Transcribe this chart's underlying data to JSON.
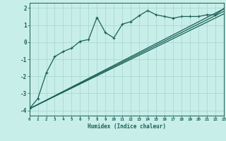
{
  "xlabel": "Humidex (Indice chaleur)",
  "background_color": "#c8eeea",
  "grid_color": "#aad8d3",
  "line_color": "#1a5f57",
  "xlim": [
    0,
    23
  ],
  "ylim": [
    -4.3,
    2.3
  ],
  "xticks": [
    0,
    1,
    2,
    3,
    4,
    5,
    6,
    7,
    8,
    9,
    10,
    11,
    12,
    13,
    14,
    15,
    16,
    17,
    18,
    19,
    20,
    21,
    22,
    23
  ],
  "yticks": [
    -4,
    -3,
    -2,
    -1,
    0,
    1,
    2
  ],
  "series": {
    "line1": {
      "x": [
        0,
        1,
        2,
        3,
        4,
        5,
        6,
        7,
        8,
        9,
        10,
        11,
        12,
        13,
        14,
        15,
        16,
        17,
        18,
        19,
        20,
        21,
        22,
        23
      ],
      "y": [
        -3.9,
        -3.3,
        -1.8,
        -0.85,
        -0.55,
        -0.35,
        0.05,
        0.15,
        1.45,
        0.55,
        0.25,
        1.05,
        1.2,
        1.55,
        1.85,
        1.6,
        1.5,
        1.4,
        1.5,
        1.5,
        1.5,
        1.6,
        1.6,
        1.95
      ]
    },
    "line2": {
      "x": [
        0,
        23
      ],
      "y": [
        -3.9,
        1.95
      ]
    },
    "line3": {
      "x": [
        0,
        23
      ],
      "y": [
        -3.9,
        1.8
      ]
    },
    "line4": {
      "x": [
        0,
        23
      ],
      "y": [
        -3.9,
        1.65
      ]
    }
  }
}
